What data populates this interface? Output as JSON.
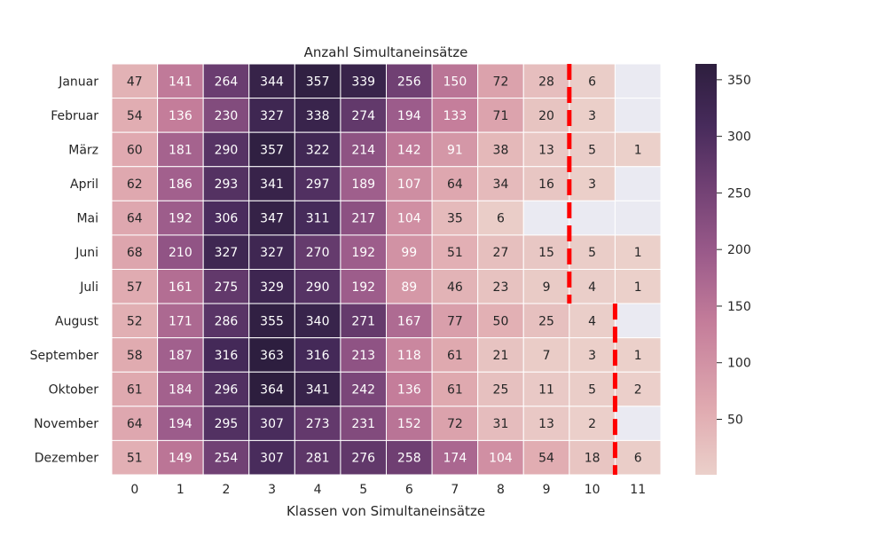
{
  "chart_data": {
    "type": "heatmap",
    "title": "Anzahl Simultaneinsätze",
    "xlabel": "Klassen von Simultaneinsätze",
    "ylabel": "",
    "x_categories": [
      "0",
      "1",
      "2",
      "3",
      "4",
      "5",
      "6",
      "7",
      "8",
      "9",
      "10",
      "11"
    ],
    "y_categories": [
      "Januar",
      "Februar",
      "März",
      "April",
      "Mai",
      "Juni",
      "Juli",
      "August",
      "September",
      "Oktober",
      "November",
      "Dezember"
    ],
    "values": [
      [
        47,
        141,
        264,
        344,
        357,
        339,
        256,
        150,
        72,
        28,
        6,
        null
      ],
      [
        54,
        136,
        230,
        327,
        338,
        274,
        194,
        133,
        71,
        20,
        3,
        null
      ],
      [
        60,
        181,
        290,
        357,
        322,
        214,
        142,
        91,
        38,
        13,
        5,
        1
      ],
      [
        62,
        186,
        293,
        341,
        297,
        189,
        107,
        64,
        34,
        16,
        3,
        null
      ],
      [
        64,
        192,
        306,
        347,
        311,
        217,
        104,
        35,
        6,
        null,
        null,
        null
      ],
      [
        68,
        210,
        327,
        327,
        270,
        192,
        99,
        51,
        27,
        15,
        5,
        1
      ],
      [
        57,
        161,
        275,
        329,
        290,
        192,
        89,
        46,
        23,
        9,
        4,
        1
      ],
      [
        52,
        171,
        286,
        355,
        340,
        271,
        167,
        77,
        50,
        25,
        4,
        null
      ],
      [
        58,
        187,
        316,
        363,
        316,
        213,
        118,
        61,
        21,
        7,
        3,
        1
      ],
      [
        61,
        184,
        296,
        364,
        341,
        242,
        136,
        61,
        25,
        11,
        5,
        2
      ],
      [
        64,
        194,
        295,
        307,
        273,
        231,
        152,
        72,
        31,
        13,
        2,
        null
      ],
      [
        51,
        149,
        254,
        307,
        281,
        276,
        258,
        174,
        104,
        54,
        18,
        6
      ]
    ],
    "colorbar": {
      "range": [
        1,
        364
      ],
      "ticks": [
        50,
        100,
        150,
        200,
        250,
        300,
        350
      ]
    },
    "colors": {
      "low": "#ebd0ca",
      "high": "#2d1e3e",
      "missing": "#eaeaf2",
      "cutoff_line": "#ff0000"
    },
    "cutoff_lines": [
      {
        "rows": [
          "Januar",
          "Juli"
        ],
        "between_classes": [
          "9",
          "10"
        ]
      },
      {
        "rows": [
          "August",
          "Dezember"
        ],
        "between_classes": [
          "10",
          "11"
        ]
      }
    ]
  }
}
